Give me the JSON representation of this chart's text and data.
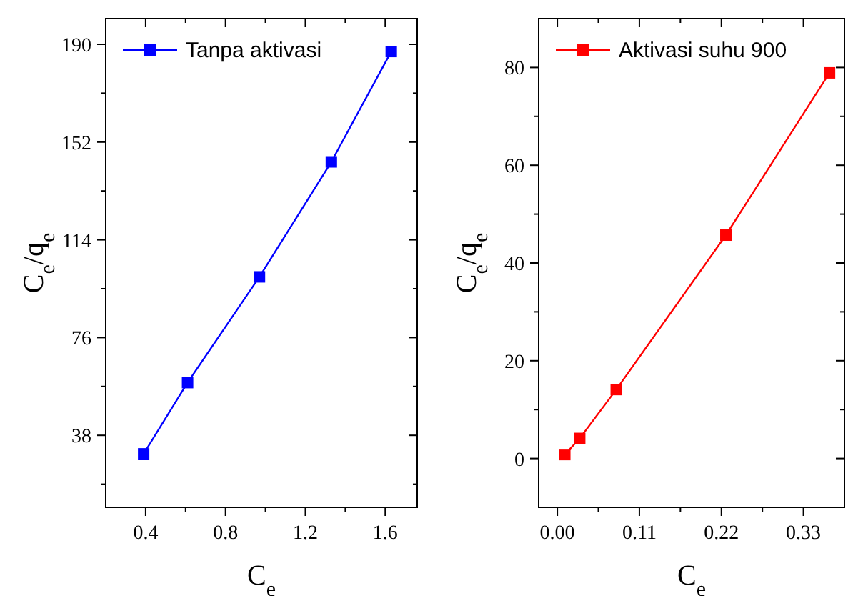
{
  "chart_data": [
    {
      "type": "line",
      "xlabel": "C$_{e}$",
      "ylabel": "C$_{e}$/q$_{e}$",
      "x": [
        0.39,
        0.61,
        0.97,
        1.33,
        1.63
      ],
      "xlim": [
        0.2,
        1.76
      ],
      "xticks": [
        0.4,
        {
          "value": 0.6,
          "label": null
        },
        0.8,
        {
          "value": 1.0,
          "label": null
        },
        1.2,
        {
          "value": 1.4,
          "label": null
        },
        1.6
      ],
      "ylim": [
        10,
        200
      ],
      "yticks": [
        {
          "value": 19,
          "label": null
        },
        38,
        {
          "value": 57,
          "label": null
        },
        76,
        {
          "value": 95,
          "label": null
        },
        114,
        {
          "value": 133,
          "label": null
        },
        152,
        {
          "value": 171,
          "label": null
        },
        190
      ],
      "grid": false,
      "legend": "top left",
      "marker": "square",
      "line_style": "solid",
      "series": [
        {
          "name": "Tanpa aktivasi",
          "color": "#0000ff",
          "values": [
            30.8,
            58.5,
            99.6,
            144.3,
            187.2
          ]
        }
      ]
    },
    {
      "type": "line",
      "xlabel": "C$_{e}$",
      "ylabel": "C$_{e}$/q$_{e}$",
      "x": [
        0.01,
        0.03,
        0.079,
        0.226,
        0.365
      ],
      "xlim": [
        -0.025,
        0.385
      ],
      "xticks": [
        {
          "value": 0.0,
          "label": "0.00"
        },
        {
          "value": 0.055,
          "label": null
        },
        0.11,
        {
          "value": 0.165,
          "label": null
        },
        0.22,
        {
          "value": 0.275,
          "label": null
        },
        0.33
      ],
      "ylim": [
        -10,
        90
      ],
      "yticks": [
        0,
        {
          "value": 10,
          "label": null
        },
        20,
        {
          "value": 30,
          "label": null
        },
        40,
        {
          "value": 50,
          "label": null
        },
        60,
        {
          "value": 70,
          "label": null
        },
        80
      ],
      "grid": false,
      "legend": "top left",
      "marker": "square",
      "line_style": "solid",
      "series": [
        {
          "name": "Aktivasi suhu 900",
          "color": "#ff0000",
          "values": [
            0.8,
            4.1,
            14.1,
            45.7,
            78.9
          ]
        }
      ]
    }
  ]
}
